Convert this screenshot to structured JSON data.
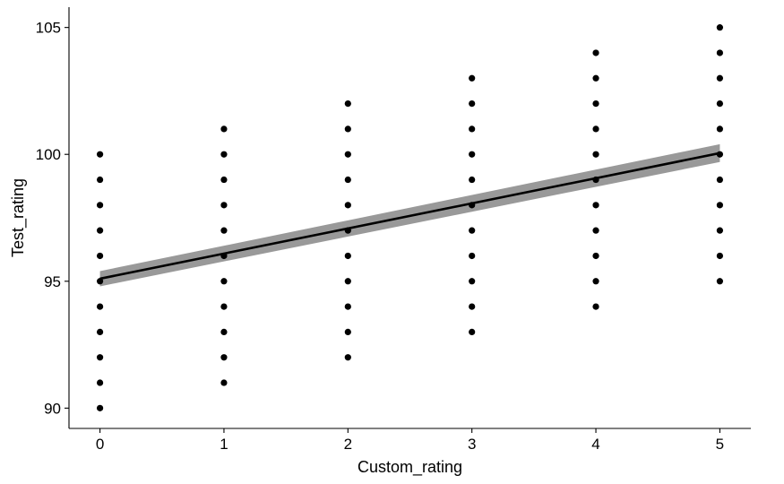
{
  "chart_data": {
    "type": "scatter",
    "title": "",
    "xlabel": "Custom_rating",
    "ylabel": "Test_rating",
    "xlim": [
      -0.25,
      5.25
    ],
    "ylim": [
      89.2,
      105.8
    ],
    "x_ticks": [
      0,
      1,
      2,
      3,
      4,
      5
    ],
    "y_ticks": [
      90,
      95,
      100,
      105
    ],
    "grid": false,
    "legend": "none",
    "series": [
      {
        "points": [
          [
            0,
            90
          ],
          [
            0,
            91
          ],
          [
            0,
            92
          ],
          [
            0,
            93
          ],
          [
            0,
            94
          ],
          [
            0,
            95
          ],
          [
            0,
            96
          ],
          [
            0,
            97
          ],
          [
            0,
            98
          ],
          [
            0,
            99
          ],
          [
            0,
            100
          ],
          [
            1,
            91
          ],
          [
            1,
            92
          ],
          [
            1,
            93
          ],
          [
            1,
            94
          ],
          [
            1,
            95
          ],
          [
            1,
            96
          ],
          [
            1,
            97
          ],
          [
            1,
            98
          ],
          [
            1,
            99
          ],
          [
            1,
            100
          ],
          [
            1,
            101
          ],
          [
            2,
            92
          ],
          [
            2,
            93
          ],
          [
            2,
            94
          ],
          [
            2,
            95
          ],
          [
            2,
            96
          ],
          [
            2,
            97
          ],
          [
            2,
            98
          ],
          [
            2,
            99
          ],
          [
            2,
            100
          ],
          [
            2,
            101
          ],
          [
            2,
            102
          ],
          [
            3,
            93
          ],
          [
            3,
            94
          ],
          [
            3,
            95
          ],
          [
            3,
            96
          ],
          [
            3,
            97
          ],
          [
            3,
            98
          ],
          [
            3,
            99
          ],
          [
            3,
            100
          ],
          [
            3,
            101
          ],
          [
            3,
            102
          ],
          [
            3,
            103
          ],
          [
            4,
            94
          ],
          [
            4,
            95
          ],
          [
            4,
            96
          ],
          [
            4,
            97
          ],
          [
            4,
            98
          ],
          [
            4,
            99
          ],
          [
            4,
            100
          ],
          [
            4,
            101
          ],
          [
            4,
            102
          ],
          [
            4,
            103
          ],
          [
            4,
            104
          ],
          [
            5,
            95
          ],
          [
            5,
            96
          ],
          [
            5,
            97
          ],
          [
            5,
            98
          ],
          [
            5,
            99
          ],
          [
            5,
            100
          ],
          [
            5,
            101
          ],
          [
            5,
            102
          ],
          [
            5,
            103
          ],
          [
            5,
            104
          ],
          [
            5,
            105
          ]
        ]
      }
    ],
    "fit_line": {
      "x": [
        0,
        5
      ],
      "y": [
        95.1,
        100.05
      ],
      "ci_low": [
        94.8,
        99.7
      ],
      "ci_high": [
        95.4,
        100.4
      ]
    },
    "colors": {
      "points": "#000000",
      "fit_line": "#000000",
      "confidence_band": "#999999"
    }
  }
}
